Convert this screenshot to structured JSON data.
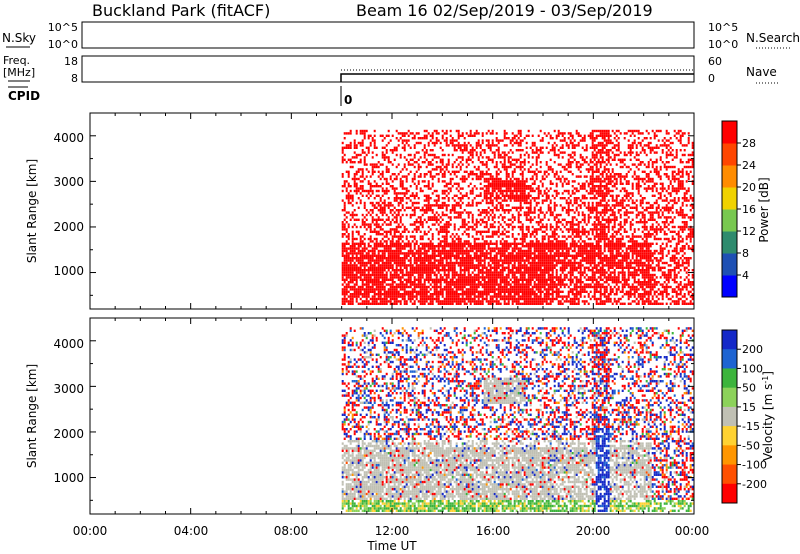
{
  "header": {
    "title": "Buckland Park (fitACF)",
    "subtitle": "Beam 16  02/Sep/2019 - 03/Sep/2019"
  },
  "strips": {
    "nsky_label": "N.Sky",
    "nsearch_label": "N.Search",
    "freq_label_1": "Freq.",
    "freq_label_2": "[MHz]",
    "nave_label": "Nave",
    "cpid_label": "CPID",
    "cpid_value": "0",
    "nsky_ticks_left": [
      "10^5",
      "10^0"
    ],
    "nsky_ticks_right": [
      "10^5",
      "10^0"
    ],
    "freq_ticks": [
      "18",
      "8"
    ],
    "nave_ticks": [
      "60",
      "0"
    ]
  },
  "chart_data": [
    {
      "type": "heatmap",
      "name": "power",
      "ylabel": "Slant Range [km]",
      "yticks": [
        "1000",
        "2000",
        "3000",
        "4000"
      ],
      "ylim": [
        200,
        4500
      ],
      "xlim_hours": [
        0,
        24
      ],
      "data_start_hours": 10,
      "colorbar": {
        "label": "Power [dB]",
        "ticks": [
          "4",
          "8",
          "12",
          "16",
          "20",
          "24",
          "28"
        ],
        "colors": [
          "#0000ff",
          "#1e50b4",
          "#2e8b6e",
          "#78c850",
          "#f0d200",
          "#ff8c00",
          "#ff4600",
          "#ff0000"
        ]
      }
    },
    {
      "type": "heatmap",
      "name": "velocity",
      "ylabel": "Slant Range [km]",
      "yticks": [
        "1000",
        "2000",
        "3000",
        "4000"
      ],
      "ylim": [
        200,
        4500
      ],
      "xlim_hours": [
        0,
        24
      ],
      "data_start_hours": 10,
      "xlabel": "Time UT",
      "xticks": [
        "00:00",
        "04:00",
        "08:00",
        "12:00",
        "16:00",
        "20:00",
        "00:00"
      ],
      "colorbar": {
        "label": "Velocity [m s",
        "label_sup": "-1",
        "label_end": "]",
        "ticks": [
          "200",
          "100",
          "50",
          "15",
          "-15",
          "-50",
          "-100",
          "-200"
        ],
        "colors": [
          "#1428c8",
          "#1e64d2",
          "#3cb43c",
          "#8cd25a",
          "#c0c0b4",
          "#ffd232",
          "#ff9600",
          "#ff5000",
          "#ff0000"
        ]
      }
    }
  ]
}
